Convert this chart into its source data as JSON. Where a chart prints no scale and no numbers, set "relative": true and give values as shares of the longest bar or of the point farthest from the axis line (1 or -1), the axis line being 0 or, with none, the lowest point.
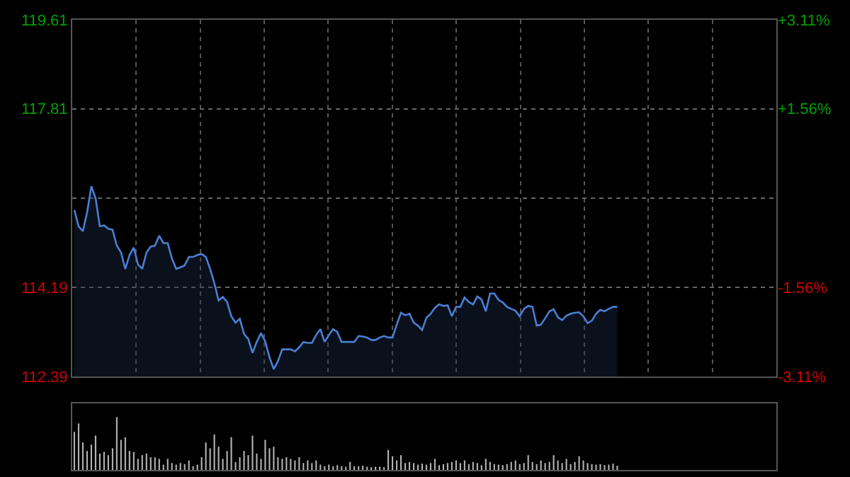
{
  "chart_data": [
    {
      "type": "area",
      "categories": [
        null,
        null,
        null,
        null,
        null,
        null,
        null,
        null,
        null,
        null,
        null,
        null,
        null,
        null,
        null,
        null,
        null,
        null,
        null,
        null,
        null,
        null,
        null,
        null,
        null,
        null,
        null,
        null,
        null,
        null,
        null,
        null,
        null,
        null,
        null,
        null,
        null,
        null,
        null,
        null,
        null,
        null,
        null,
        null,
        null,
        null,
        null,
        null,
        null,
        null,
        null,
        null,
        null,
        null,
        null,
        null,
        null,
        null,
        null,
        null,
        null,
        null,
        null,
        null,
        null,
        null,
        null,
        null,
        null,
        null,
        null,
        null,
        null,
        null,
        null,
        null,
        null,
        null,
        null,
        null,
        null,
        null,
        null,
        null,
        null,
        null,
        null,
        null,
        null,
        null,
        null,
        null,
        null,
        null,
        null,
        null,
        null,
        null,
        null,
        null,
        null,
        null,
        null,
        null,
        null,
        null,
        null,
        null,
        null,
        null,
        null,
        null,
        null,
        null,
        null,
        null,
        null,
        null,
        null,
        null,
        null,
        null,
        null,
        null,
        null,
        null,
        null,
        null,
        null,
        null,
        null,
        null,
        null,
        null,
        null,
        null,
        null,
        null,
        null,
        null,
        null,
        null,
        null,
        null,
        null,
        null,
        null,
        null,
        null,
        null,
        null,
        null,
        null,
        null,
        null,
        null,
        null,
        null,
        null,
        null,
        null,
        null,
        null,
        null,
        null,
        null
      ],
      "series": [
        {
          "color": "#4a7fd4",
          "values": [
            115.76,
            115.43,
            115.33,
            115.71,
            116.24,
            116.0,
            115.43,
            115.45,
            115.38,
            115.36,
            115.04,
            114.9,
            114.57,
            114.85,
            115.0,
            114.66,
            114.57,
            114.9,
            115.02,
            115.04,
            115.24,
            115.09,
            115.09,
            114.78,
            114.57,
            114.6,
            114.64,
            114.81,
            114.81,
            114.85,
            114.87,
            114.81,
            114.57,
            114.28,
            113.93,
            114.0,
            113.9,
            113.61,
            113.48,
            113.56,
            113.25,
            113.15,
            112.87,
            113.09,
            113.27,
            113.1,
            112.78,
            112.54,
            112.7,
            112.94,
            112.94,
            112.94,
            112.9,
            112.98,
            113.09,
            113.07,
            113.07,
            113.23,
            113.35,
            113.09,
            113.23,
            113.35,
            113.29,
            113.09,
            113.09,
            113.09,
            113.09,
            113.21,
            113.2,
            113.18,
            113.13,
            113.13,
            113.18,
            113.21,
            113.18,
            113.18,
            113.44,
            113.68,
            113.63,
            113.66,
            113.48,
            113.42,
            113.33,
            113.58,
            113.66,
            113.78,
            113.85,
            113.82,
            113.83,
            113.61,
            113.8,
            113.8,
            113.99,
            113.9,
            113.85,
            114.01,
            113.95,
            113.71,
            114.07,
            114.07,
            113.94,
            113.89,
            113.8,
            113.76,
            113.72,
            113.61,
            113.76,
            113.82,
            113.8,
            113.42,
            113.44,
            113.57,
            113.71,
            113.75,
            113.59,
            113.53,
            113.62,
            113.66,
            113.68,
            113.69,
            113.61,
            113.47,
            113.52,
            113.66,
            113.74,
            113.71,
            113.76,
            113.8,
            113.8,
            null,
            null,
            null,
            null,
            null,
            null,
            null,
            null,
            null,
            null,
            null,
            null,
            null,
            null,
            null,
            null,
            null,
            null,
            null,
            null,
            null,
            null,
            null,
            null,
            null,
            null,
            null,
            null,
            null,
            null,
            null,
            null,
            null,
            null,
            null,
            null,
            null
          ]
        }
      ],
      "ylim": [
        112.39,
        119.61
      ],
      "yticks": [
        119.61,
        117.81,
        {
          "value": 116,
          "label": null
        },
        114.19,
        112.39
      ],
      "y2lim": [
        -3.11,
        3.11
      ],
      "y2ticks": [
        {
          "value": 3.11,
          "label": "+3.11%"
        },
        {
          "value": 1.56,
          "label": "+1.56%"
        },
        {
          "value": -1.56,
          "label": "-1.56%"
        },
        {
          "value": -3.11,
          "label": "-3.11%"
        }
      ],
      "grid": true,
      "tick_labels": "y",
      "marker": "none",
      "line_style": "solid"
    },
    {
      "type": "bar",
      "relative": true,
      "categories": [
        null,
        null,
        null,
        null,
        null,
        null,
        null,
        null,
        null,
        null,
        null,
        null,
        null,
        null,
        null,
        null,
        null,
        null,
        null,
        null,
        null,
        null,
        null,
        null,
        null,
        null,
        null,
        null,
        null,
        null,
        null,
        null,
        null,
        null,
        null,
        null,
        null,
        null,
        null,
        null,
        null,
        null,
        null,
        null,
        null,
        null,
        null,
        null,
        null,
        null,
        null,
        null,
        null,
        null,
        null,
        null,
        null,
        null,
        null,
        null,
        null,
        null,
        null,
        null,
        null,
        null,
        null,
        null,
        null,
        null,
        null,
        null,
        null,
        null,
        null,
        null,
        null,
        null,
        null,
        null,
        null,
        null,
        null,
        null,
        null,
        null,
        null,
        null,
        null,
        null,
        null,
        null,
        null,
        null,
        null,
        null,
        null,
        null,
        null,
        null,
        null,
        null,
        null,
        null,
        null,
        null,
        null,
        null,
        null,
        null,
        null,
        null,
        null,
        null,
        null,
        null,
        null,
        null,
        null,
        null,
        null,
        null,
        null,
        null,
        null,
        null,
        null,
        null,
        null,
        null,
        null,
        null,
        null,
        null,
        null,
        null,
        null,
        null,
        null,
        null,
        null,
        null,
        null,
        null,
        null,
        null,
        null,
        null,
        null,
        null,
        null,
        null,
        null,
        null,
        null,
        null,
        null,
        null,
        null,
        null,
        null,
        null,
        null,
        null,
        null,
        null
      ],
      "series": [
        {
          "color": "#b4b4b4",
          "values": [
            0.72,
            0.88,
            0.52,
            0.36,
            0.48,
            0.65,
            0.31,
            0.34,
            0.28,
            0.41,
            1,
            0.57,
            0.62,
            0.36,
            0.34,
            0.21,
            0.28,
            0.31,
            0.24,
            0.24,
            0.21,
            0.1,
            0.21,
            0.13,
            0.1,
            0.13,
            0.11,
            0.18,
            0.07,
            0.1,
            0.24,
            0.52,
            0.41,
            0.67,
            0.44,
            0.21,
            0.36,
            0.62,
            0.15,
            0.24,
            0.36,
            0.28,
            0.65,
            0.31,
            0.21,
            0.57,
            0.41,
            0.44,
            0.24,
            0.21,
            0.24,
            0.21,
            0.18,
            0.24,
            0.13,
            0.18,
            0.13,
            0.18,
            0.1,
            0.07,
            0.1,
            0.07,
            0.09,
            0.07,
            0.06,
            0.15,
            0.07,
            0.07,
            0.08,
            0.06,
            0.05,
            0.06,
            0.06,
            0.05,
            0.38,
            0.26,
            0.18,
            0.28,
            0.13,
            0.15,
            0.13,
            0.1,
            0.12,
            0.1,
            0.13,
            0.21,
            0.09,
            0.11,
            0.13,
            0.15,
            0.18,
            0.13,
            0.18,
            0.11,
            0.15,
            0.13,
            0.09,
            0.21,
            0.15,
            0.11,
            0.1,
            0.09,
            0.11,
            0.15,
            0.18,
            0.11,
            0.13,
            0.28,
            0.15,
            0.11,
            0.18,
            0.13,
            0.15,
            0.28,
            0.18,
            0.13,
            0.21,
            0.11,
            0.15,
            0.26,
            0.18,
            0.13,
            0.11,
            0.1,
            0.11,
            0.09,
            0.1,
            0.12,
            0.08,
            null,
            null,
            null,
            null,
            null,
            null,
            null,
            null,
            null,
            null,
            null,
            null,
            null,
            null,
            null,
            null,
            null,
            null,
            null,
            null,
            null,
            null,
            null,
            null,
            null,
            null,
            null,
            null,
            null,
            null,
            null,
            null,
            null,
            null,
            null,
            null,
            null
          ]
        }
      ],
      "tick_labels": false
    }
  ]
}
